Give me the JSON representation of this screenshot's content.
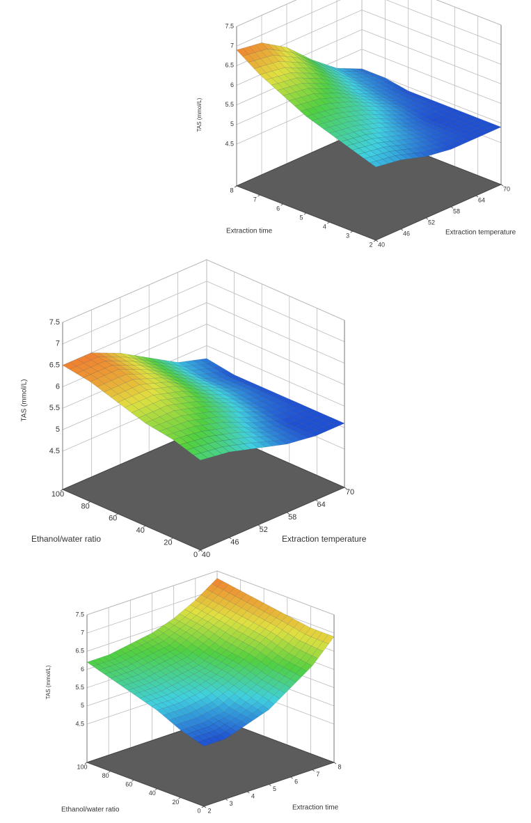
{
  "chart_data": [
    {
      "type": "surface",
      "z_label": "TAS (mmol/L)",
      "x_label": "Extraction time",
      "y_label": "Extraction temperature",
      "xlim": [
        2,
        8
      ],
      "xticks": [
        2,
        3,
        4,
        5,
        6,
        7,
        8
      ],
      "ylim": [
        40,
        70
      ],
      "yticks": [
        40,
        46,
        52,
        58,
        64,
        70
      ],
      "zlim": [
        4.5,
        7.5
      ],
      "zticks": [
        4.5,
        5,
        5.5,
        6,
        6.5,
        7,
        7.5
      ],
      "values": [
        [
          5.3,
          5.2,
          5.0,
          4.9,
          4.9,
          4.9
        ],
        [
          5.5,
          5.4,
          5.2,
          5.0,
          4.9,
          4.9
        ],
        [
          5.7,
          5.6,
          5.4,
          5.1,
          4.9,
          4.9
        ],
        [
          5.9,
          5.8,
          5.6,
          5.3,
          5.0,
          4.9
        ],
        [
          6.2,
          6.1,
          5.8,
          5.4,
          5.1,
          4.9
        ],
        [
          6.5,
          6.4,
          6.1,
          5.6,
          5.2,
          5.0
        ],
        [
          6.9,
          6.8,
          6.4,
          5.8,
          5.3,
          5.0
        ]
      ]
    },
    {
      "type": "surface",
      "z_label": "TAS (mmol/L)",
      "x_label": "Ethanol/water ratio",
      "y_label": "Extraction temperature",
      "xlim": [
        0,
        100
      ],
      "xticks": [
        0,
        20,
        40,
        60,
        80,
        100
      ],
      "ylim": [
        40,
        70
      ],
      "yticks": [
        40,
        46,
        52,
        58,
        64,
        70
      ],
      "zlim": [
        4.5,
        7.5
      ],
      "zticks": [
        4.5,
        5,
        5.5,
        6,
        6.5,
        7,
        7.5
      ],
      "values": [
        [
          5.7,
          5.6,
          5.4,
          5.2,
          5.1,
          5.1
        ],
        [
          5.9,
          5.8,
          5.6,
          5.3,
          5.1,
          5.1
        ],
        [
          6.0,
          6.0,
          5.8,
          5.5,
          5.2,
          5.1
        ],
        [
          6.2,
          6.2,
          6.0,
          5.6,
          5.3,
          5.1
        ],
        [
          6.4,
          6.4,
          6.1,
          5.7,
          5.3,
          5.1
        ],
        [
          6.5,
          6.5,
          6.2,
          5.8,
          5.4,
          5.2
        ]
      ]
    },
    {
      "type": "surface",
      "z_label": "TAS (mmol/L)",
      "x_label": "Ethanol/water ratio",
      "y_label": "Extraction time",
      "xlim": [
        0,
        100
      ],
      "xticks": [
        0,
        20,
        40,
        60,
        80,
        100
      ],
      "ylim": [
        2,
        8
      ],
      "yticks": [
        2,
        3,
        4,
        5,
        6,
        7,
        8
      ],
      "zlim": [
        4.5,
        7.5
      ],
      "zticks": [
        4.5,
        5,
        5.5,
        6,
        6.5,
        7,
        7.5
      ],
      "values": [
        [
          5.1,
          5.1,
          5.3,
          5.5,
          5.9,
          6.3,
          6.9
        ],
        [
          5.3,
          5.3,
          5.4,
          5.7,
          6.0,
          6.4,
          6.9
        ],
        [
          5.6,
          5.6,
          5.7,
          5.9,
          6.2,
          6.6,
          7.0
        ],
        [
          5.8,
          5.8,
          5.9,
          6.0,
          6.3,
          6.7,
          7.1
        ],
        [
          6.0,
          6.0,
          6.1,
          6.2,
          6.5,
          6.8,
          7.2
        ],
        [
          6.2,
          6.2,
          6.3,
          6.4,
          6.6,
          6.9,
          7.3
        ]
      ]
    }
  ]
}
